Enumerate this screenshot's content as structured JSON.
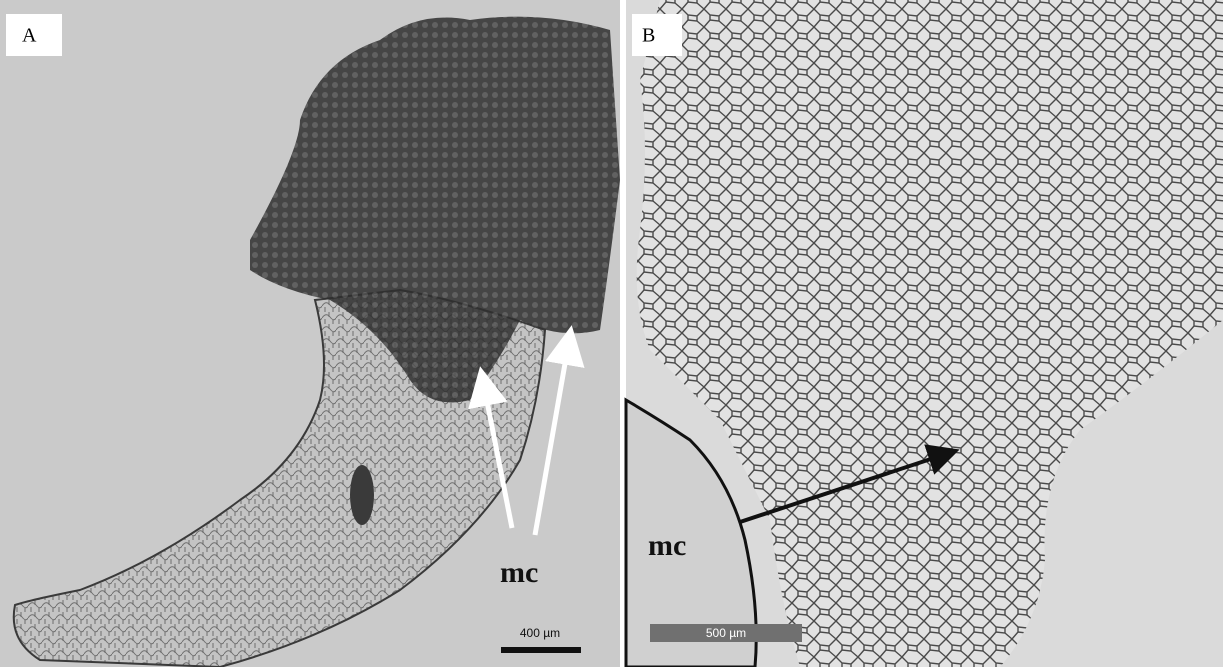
{
  "panels": [
    {
      "label": "A",
      "annotation": "mc",
      "scale_bar": "400 µm"
    },
    {
      "label": "B",
      "annotation": "mc",
      "scale_bar": "500 µm"
    }
  ]
}
